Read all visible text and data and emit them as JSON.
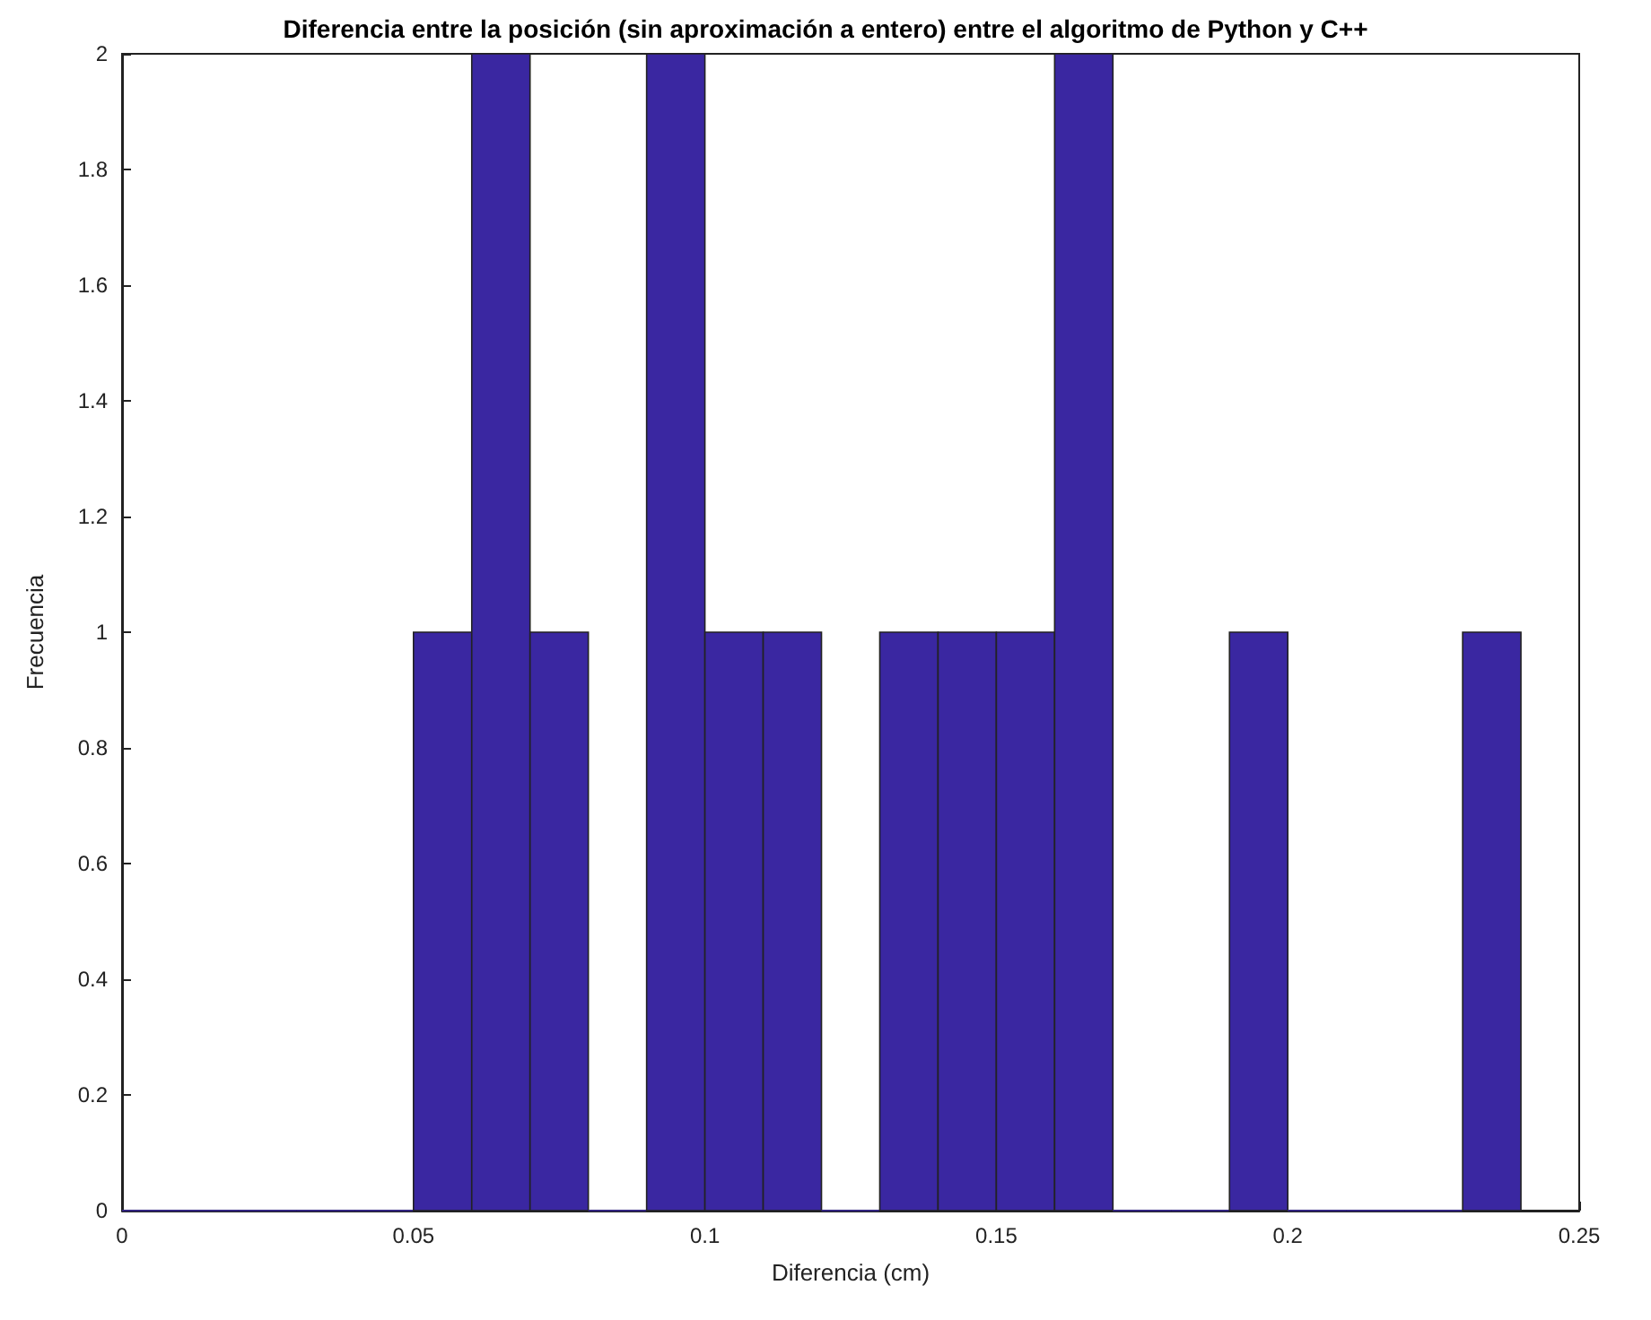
{
  "chart_data": {
    "type": "histogram",
    "title": "Diferencia entre la posición (sin aproximación a entero) entre el algoritmo de Python y C++",
    "xlabel": "Diferencia (cm)",
    "ylabel": "Frecuencia",
    "bins": [
      0,
      0.01,
      0.02,
      0.03,
      0.04,
      0.05,
      0.06,
      0.07,
      0.08,
      0.09,
      0.1,
      0.11,
      0.12,
      0.13,
      0.14,
      0.15,
      0.16,
      0.17,
      0.18,
      0.19,
      0.2,
      0.21,
      0.22,
      0.23,
      0.24
    ],
    "values": [
      0,
      0,
      0,
      0,
      0,
      1,
      2,
      1,
      0,
      2,
      1,
      1,
      0,
      1,
      1,
      1,
      2,
      0,
      0,
      1,
      0,
      0,
      0,
      1
    ],
    "color": "#3a27a1",
    "xlim": [
      0,
      0.25
    ],
    "xticks": [
      0,
      0.05,
      0.1,
      0.15,
      0.2,
      0.25
    ],
    "ylim": [
      0,
      2
    ],
    "yticks": [
      0,
      0.2,
      0.4,
      0.6,
      0.8,
      1,
      1.2,
      1.4,
      1.6,
      1.8,
      2
    ],
    "grid": false
  }
}
